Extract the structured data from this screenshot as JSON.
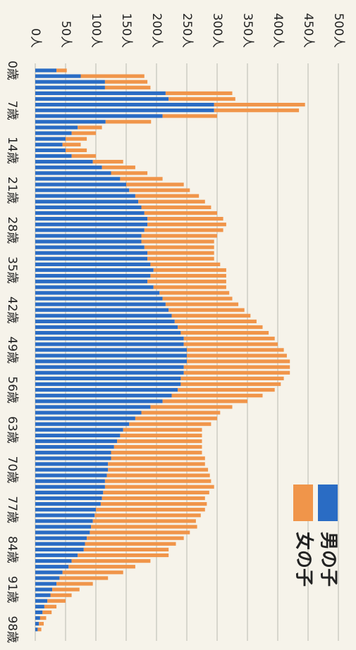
{
  "chart_data": {
    "type": "bar",
    "stacked": true,
    "rotated": true,
    "categories": [
      "0歳",
      null,
      null,
      null,
      null,
      null,
      null,
      "7歳",
      null,
      null,
      null,
      null,
      null,
      null,
      "14歳",
      null,
      null,
      null,
      null,
      null,
      null,
      "21歳",
      null,
      null,
      null,
      null,
      null,
      null,
      "28歳",
      null,
      null,
      null,
      null,
      null,
      null,
      "35歳",
      null,
      null,
      null,
      null,
      null,
      null,
      "42歳",
      null,
      null,
      null,
      null,
      null,
      null,
      "49歳",
      null,
      null,
      null,
      null,
      null,
      null,
      "56歳",
      null,
      null,
      null,
      null,
      null,
      null,
      "63歳",
      null,
      null,
      null,
      null,
      null,
      null,
      "70歳",
      null,
      null,
      null,
      null,
      null,
      null,
      "77歳",
      null,
      null,
      null,
      null,
      null,
      null,
      "84歳",
      null,
      null,
      null,
      null,
      null,
      null,
      "91歳",
      null,
      null,
      null,
      null,
      null,
      null,
      "98歳"
    ],
    "series": [
      {
        "name": "男の子",
        "color": "#2a6cc4",
        "values": [
          35,
          75,
          115,
          115,
          215,
          220,
          295,
          295,
          210,
          116,
          70,
          60,
          50,
          45,
          50,
          60,
          95,
          110,
          125,
          140,
          150,
          155,
          165,
          170,
          175,
          180,
          185,
          185,
          180,
          175,
          175,
          180,
          185,
          185,
          190,
          195,
          190,
          185,
          195,
          205,
          210,
          215,
          220,
          225,
          230,
          235,
          240,
          245,
          245,
          250,
          250,
          250,
          245,
          245,
          240,
          240,
          235,
          225,
          210,
          190,
          175,
          165,
          155,
          145,
          140,
          135,
          130,
          125,
          125,
          120,
          120,
          118,
          115,
          115,
          112,
          110,
          108,
          100,
          98,
          95,
          92,
          90,
          85,
          82,
          80,
          70,
          60,
          55,
          45,
          40,
          35,
          28,
          25,
          20,
          15,
          12,
          8,
          6,
          4
        ]
      },
      {
        "name": "女の子",
        "color": "#f0954a",
        "values": [
          17,
          105,
          70,
          75,
          110,
          110,
          150,
          140,
          90,
          75,
          40,
          40,
          35,
          30,
          35,
          40,
          50,
          55,
          60,
          70,
          95,
          100,
          105,
          110,
          115,
          120,
          125,
          130,
          130,
          125,
          120,
          115,
          110,
          110,
          115,
          120,
          125,
          130,
          120,
          115,
          115,
          120,
          125,
          130,
          135,
          140,
          145,
          150,
          155,
          160,
          165,
          170,
          175,
          175,
          170,
          165,
          160,
          150,
          140,
          135,
          130,
          135,
          135,
          130,
          135,
          140,
          145,
          150,
          155,
          160,
          165,
          170,
          175,
          180,
          175,
          170,
          175,
          180,
          175,
          170,
          175,
          165,
          160,
          150,
          140,
          150,
          130,
          110,
          100,
          80,
          60,
          45,
          35,
          30,
          20,
          15,
          10,
          8,
          6
        ]
      }
    ],
    "ylim": [
      0,
      500
    ],
    "yticks": [
      {
        "value": 0,
        "label": "0人"
      },
      {
        "value": 50,
        "label": "50人"
      },
      {
        "value": 100,
        "label": "100人"
      },
      {
        "value": 150,
        "label": "150人"
      },
      {
        "value": 200,
        "label": "200人"
      },
      {
        "value": 250,
        "label": "250人"
      },
      {
        "value": 300,
        "label": "300人"
      },
      {
        "value": 350,
        "label": "350人"
      },
      {
        "value": 400,
        "label": "400人"
      },
      {
        "value": 450,
        "label": "450人"
      },
      {
        "value": 500,
        "label": "500人"
      }
    ],
    "grid": true,
    "legend": "upper right"
  }
}
